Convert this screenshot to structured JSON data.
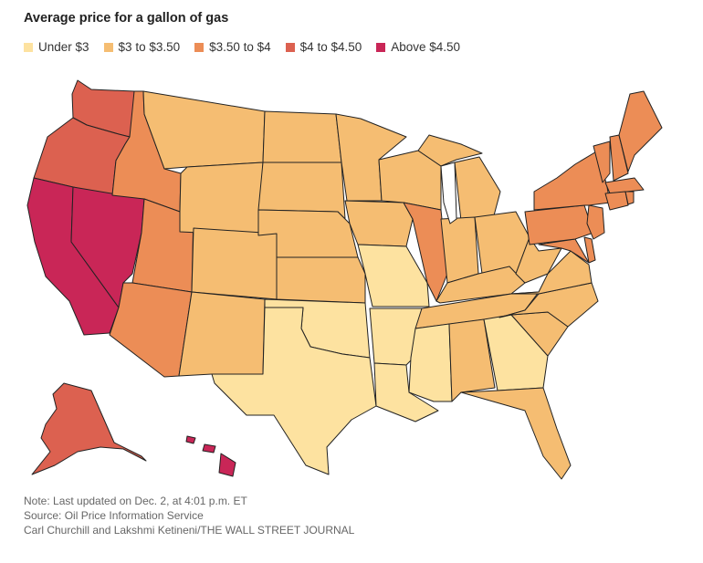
{
  "title": "Average price for a gallon of gas",
  "legend": [
    {
      "label": "Under $3",
      "color": "#fde2a0"
    },
    {
      "label": "$3 to $3.50",
      "color": "#f5bd72"
    },
    {
      "label": "$3.50 to $4",
      "color": "#ec8d56"
    },
    {
      "label": "$4 to $4.50",
      "color": "#dc6150"
    },
    {
      "label": "Above $4.50",
      "color": "#c92657"
    }
  ],
  "notes": {
    "note": "Note: Last updated on Dec. 2, at 4:01 p.m. ET",
    "source": "Source: Oil Price Information Service",
    "credit": "Carl Churchill and Lakshmi Ketineni/THE WALL STREET JOURNAL"
  },
  "chart_data": {
    "type": "choropleth",
    "title": "Average price for a gallon of gas",
    "bins": [
      "Under $3",
      "$3 to $3.50",
      "$3.50 to $4",
      "$4 to $4.50",
      "Above $4.50"
    ],
    "states": {
      "WA": "$4 to $4.50",
      "OR": "$4 to $4.50",
      "CA": "Above $4.50",
      "NV": "Above $4.50",
      "ID": "$3.50 to $4",
      "UT": "$3.50 to $4",
      "AZ": "$3.50 to $4",
      "MT": "$3 to $3.50",
      "WY": "$3 to $3.50",
      "CO": "$3 to $3.50",
      "NM": "$3 to $3.50",
      "ND": "$3 to $3.50",
      "SD": "$3 to $3.50",
      "NE": "$3 to $3.50",
      "KS": "$3 to $3.50",
      "OK": "Under $3",
      "TX": "Under $3",
      "MN": "$3 to $3.50",
      "IA": "$3 to $3.50",
      "MO": "Under $3",
      "AR": "Under $3",
      "LA": "Under $3",
      "WI": "$3 to $3.50",
      "IL": "$3.50 to $4",
      "MI": "$3 to $3.50",
      "IN": "$3 to $3.50",
      "OH": "$3 to $3.50",
      "KY": "$3 to $3.50",
      "TN": "$3 to $3.50",
      "MS": "Under $3",
      "AL": "$3 to $3.50",
      "GA": "Under $3",
      "FL": "$3 to $3.50",
      "SC": "$3 to $3.50",
      "NC": "$3 to $3.50",
      "VA": "$3 to $3.50",
      "WV": "$3 to $3.50",
      "PA": "$3.50 to $4",
      "NY": "$3.50 to $4",
      "VT": "$3.50 to $4",
      "NH": "$3.50 to $4",
      "ME": "$3.50 to $4",
      "MA": "$3.50 to $4",
      "RI": "$3.50 to $4",
      "CT": "$3.50 to $4",
      "NJ": "$3.50 to $4",
      "DE": "$3.50 to $4",
      "MD": "$3.50 to $4",
      "AK": "$4 to $4.50",
      "HI": "Above $4.50"
    }
  }
}
